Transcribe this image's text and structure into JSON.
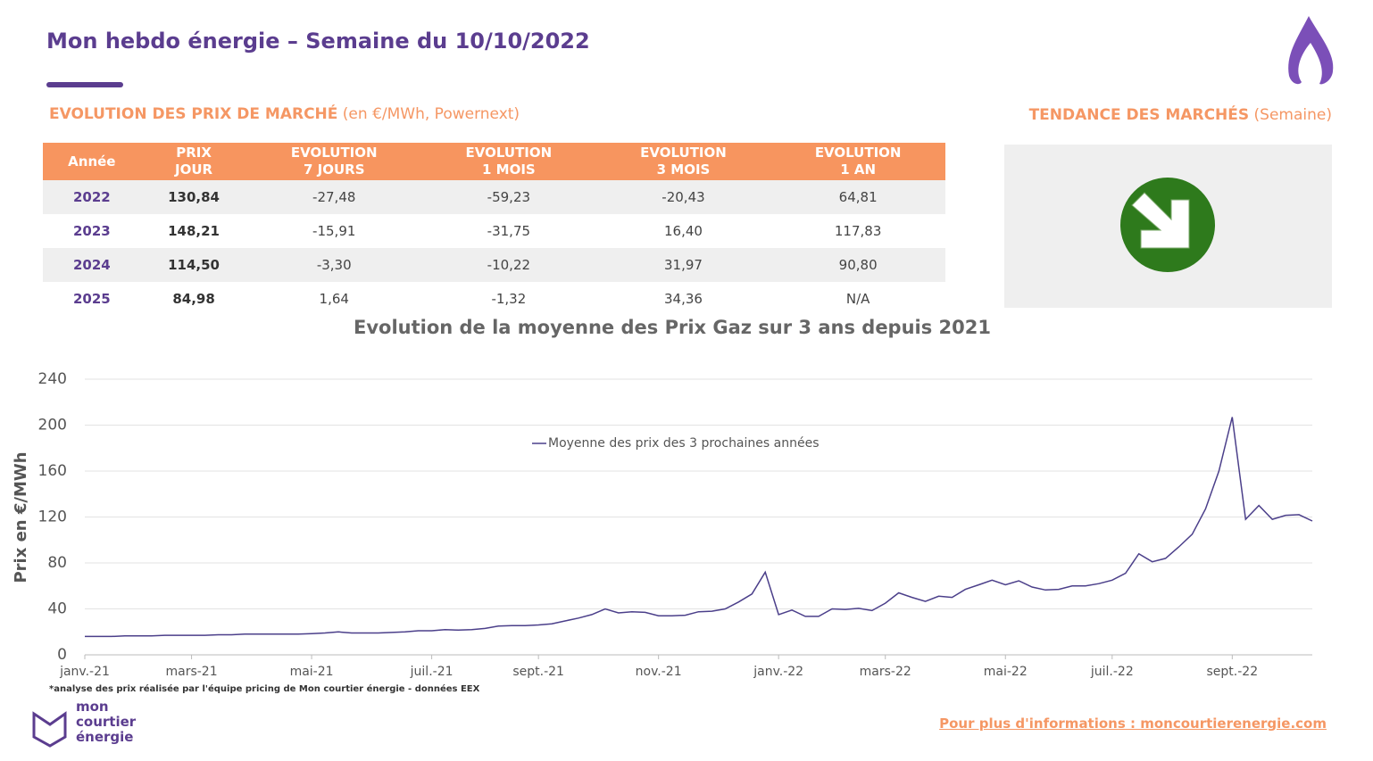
{
  "header": {
    "title": "Mon hebdo énergie – Semaine du 10/10/2022"
  },
  "section_market": {
    "title": "EVOLUTION DES PRIX DE MARCHÉ",
    "subtitle": "(en €/MWh, Powernext)"
  },
  "section_trend": {
    "title": "TENDANCE DES MARCHÉS",
    "subtitle": "(Semaine)"
  },
  "table": {
    "columns": [
      "Année",
      "PRIX\nJOUR",
      "EVOLUTION\n7 JOURS",
      "EVOLUTION\n1 MOIS",
      "EVOLUTION\n3 MOIS",
      "EVOLUTION\n1 AN"
    ],
    "rows": [
      [
        "2022",
        "130,84",
        "-27,48",
        "-59,23",
        "-20,43",
        "64,81"
      ],
      [
        "2023",
        "148,21",
        "-15,91",
        "-31,75",
        "16,40",
        "117,83"
      ],
      [
        "2024",
        "114,50",
        "-3,30",
        "-10,22",
        "31,97",
        "90,80"
      ],
      [
        "2025",
        "84,98",
        "1,64",
        "-1,32",
        "34,36",
        "N/A"
      ]
    ]
  },
  "chart_data": {
    "type": "line",
    "title": "Evolution de la moyenne des Prix Gaz sur 3 ans depuis 2021",
    "y_label": "Prix en €/MWh",
    "ylim": [
      0,
      240
    ],
    "yticks": [
      0,
      40,
      80,
      120,
      160,
      200,
      240
    ],
    "grid": true,
    "legend": "top",
    "categories": [
      "janv.-21",
      null,
      null,
      null,
      null,
      null,
      null,
      null,
      "mars-21",
      null,
      null,
      null,
      null,
      null,
      null,
      null,
      null,
      "mai-21",
      null,
      null,
      null,
      null,
      null,
      null,
      null,
      null,
      "juil.-21",
      null,
      null,
      null,
      null,
      null,
      null,
      null,
      "sept.-21",
      null,
      null,
      null,
      null,
      null,
      null,
      null,
      null,
      "nov.-21",
      null,
      null,
      null,
      null,
      null,
      null,
      null,
      null,
      "janv.-22",
      null,
      null,
      null,
      null,
      null,
      null,
      null,
      "mars-22",
      null,
      null,
      null,
      null,
      null,
      null,
      null,
      null,
      "mai-22",
      null,
      null,
      null,
      null,
      null,
      null,
      null,
      "juil.-22",
      null,
      null,
      null,
      null,
      null,
      null,
      null,
      null,
      "sept.-22",
      null,
      null,
      null,
      null,
      null,
      null
    ],
    "series": [
      {
        "name": "Moyenne des prix des 3 prochaines années",
        "color": "#4b3f8a",
        "values": [
          16,
          16,
          16,
          16.5,
          16.5,
          16.5,
          17,
          17,
          17,
          17,
          17.5,
          17.5,
          18,
          18,
          18,
          18,
          18,
          18.5,
          19,
          20,
          19,
          19,
          19,
          19.5,
          20,
          21,
          21,
          22,
          21.5,
          22,
          23,
          25,
          25.5,
          25.5,
          26,
          27,
          29.5,
          32,
          35,
          40,
          36.5,
          37.5,
          37,
          34,
          34,
          34.5,
          37.5,
          38,
          40,
          46,
          53,
          72,
          35,
          39,
          33.5,
          33.5,
          40,
          39.5,
          40.5,
          38.5,
          45,
          54,
          50,
          46.5,
          51,
          50,
          57,
          61,
          65,
          61,
          64.5,
          59,
          56.5,
          57,
          60,
          60,
          62,
          65,
          71,
          88,
          81,
          84,
          94,
          105,
          127,
          160,
          207,
          118,
          130,
          118,
          121.5,
          122,
          116.5
        ]
      }
    ]
  },
  "footer": {
    "note": "*analyse des prix réalisée par l'équipe pricing de Mon courtier énergie -  données EEX",
    "link": "Pour plus d'informations : moncourtierenergie.com",
    "logo": "mon\ncourtier\nénergie"
  }
}
